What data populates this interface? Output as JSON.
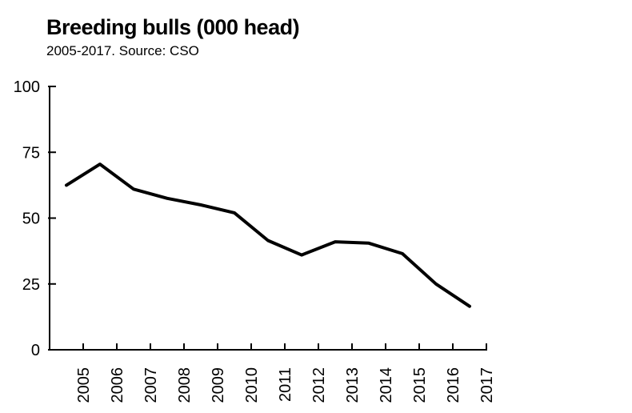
{
  "chart_data": {
    "type": "line",
    "title": "Breeding bulls (000 head)",
    "subtitle": "2005-2017. Source: CSO",
    "xlabel": "",
    "ylabel": "",
    "ylim": [
      0,
      100
    ],
    "yticks": [
      "0",
      "25",
      "50",
      "75",
      "100"
    ],
    "yticks_values": [
      0,
      25,
      50,
      75,
      100
    ],
    "x_tick_labels": [
      "2005",
      "2006",
      "2007",
      "2008",
      "2009",
      "2010",
      "2011",
      "2012",
      "2013",
      "2014",
      "2015",
      "2016",
      "2017"
    ],
    "grid": false,
    "legend": "none",
    "line_color": "#000000",
    "series": [
      {
        "x": [
          "2005",
          "2006",
          "2007",
          "2008",
          "2009",
          "2010",
          "2011",
          "2012",
          "2013",
          "2014",
          "2015",
          "2016",
          "2017"
        ],
        "values": [
          62.5,
          70.5,
          61,
          57.5,
          55,
          52,
          41.5,
          36,
          41,
          40.5,
          36.5,
          25,
          16.5
        ]
      }
    ]
  }
}
